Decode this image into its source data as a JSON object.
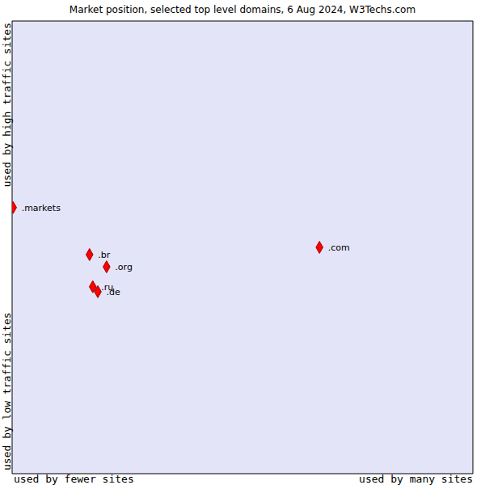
{
  "chart_data": {
    "type": "scatter",
    "title": "Market position, selected top level domains, 6 Aug 2024, W3Techs.com",
    "x_axis_labels": [
      "used by fewer sites",
      "used by many sites"
    ],
    "y_axis_labels": [
      "used by low traffic sites",
      "used by high traffic sites"
    ],
    "point_labels": [
      ".markets",
      ".br",
      ".org",
      ".ru",
      ".de",
      ".com"
    ],
    "x": [
      0.02,
      1.68,
      2.05,
      1.75,
      1.86,
      6.67
    ],
    "values": [
      5.88,
      4.84,
      4.57,
      4.13,
      4.02,
      5.0
    ],
    "color": "#ff0000",
    "marker": "diamond",
    "xlim": [
      0,
      10
    ],
    "ylim": [
      0,
      10
    ],
    "xticks": [
      0,
      1,
      2,
      3,
      4,
      5,
      6,
      7,
      8,
      9,
      10
    ],
    "yticks": [
      0,
      1,
      2,
      3,
      4,
      5,
      6,
      7,
      8,
      9,
      10
    ],
    "grid": true,
    "tick_labels": false
  }
}
